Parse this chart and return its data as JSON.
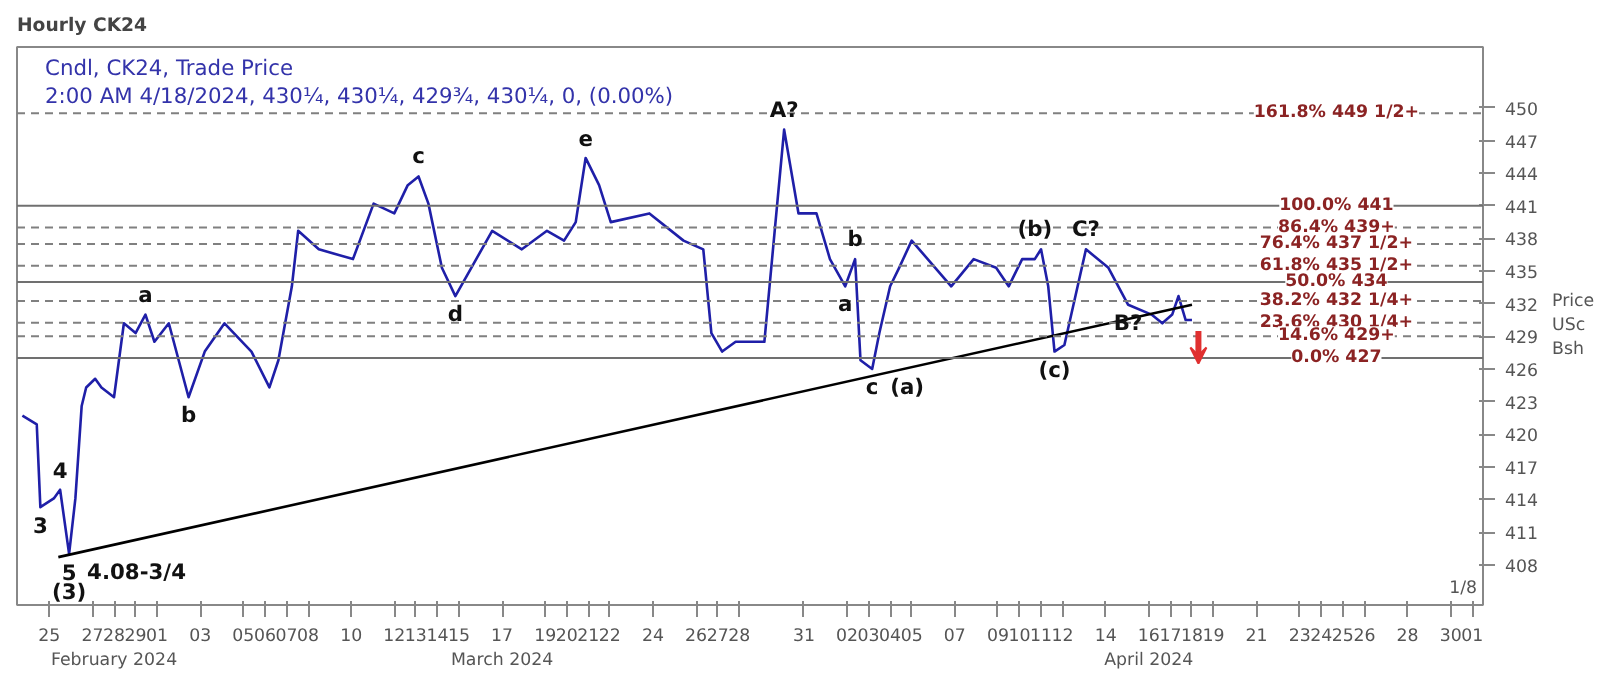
{
  "chart_data": {
    "type": "line",
    "title": "Hourly CK24",
    "subtitle": "Cndl, CK24, Trade Price",
    "ylabel": "Price USc Bsh",
    "xlim": [
      "2024-02-23T12:00",
      "2024-05-01T12:00"
    ],
    "xticks": [
      {
        "value": "2024-02-25",
        "label": "25"
      },
      {
        "value": "2024-02-27",
        "label": "27"
      },
      {
        "value": "2024-02-28",
        "label": "28\nFebruary 2024"
      },
      {
        "value": "2024-02-29",
        "label": "29"
      },
      {
        "value": "2024-03-01",
        "label": "01"
      },
      {
        "value": "2024-03-03",
        "label": "03"
      },
      {
        "value": "2024-03-05",
        "label": "05"
      },
      {
        "value": "2024-03-06",
        "label": "06"
      },
      {
        "value": "2024-03-07",
        "label": "07"
      },
      {
        "value": "2024-03-08",
        "label": "08"
      },
      {
        "value": "2024-03-10",
        "label": "10"
      },
      {
        "value": "2024-03-12",
        "label": "12"
      },
      {
        "value": "2024-03-13",
        "label": "13"
      },
      {
        "value": "2024-03-14",
        "label": "14"
      },
      {
        "value": "2024-03-15",
        "label": "15"
      },
      {
        "value": "2024-03-17",
        "label": "17\nMarch 2024"
      },
      {
        "value": "2024-03-19",
        "label": "19"
      },
      {
        "value": "2024-03-20",
        "label": "20"
      },
      {
        "value": "2024-03-21",
        "label": "21"
      },
      {
        "value": "2024-03-22",
        "label": "22"
      },
      {
        "value": "2024-03-24",
        "label": "24"
      },
      {
        "value": "2024-03-26",
        "label": "26"
      },
      {
        "value": "2024-03-27",
        "label": "27"
      },
      {
        "value": "2024-03-28",
        "label": "28"
      },
      {
        "value": "2024-03-31",
        "label": "31"
      },
      {
        "value": "2024-04-02",
        "label": "02"
      },
      {
        "value": "2024-04-03",
        "label": "03"
      },
      {
        "value": "2024-04-04",
        "label": "04"
      },
      {
        "value": "2024-04-05",
        "label": "05"
      },
      {
        "value": "2024-04-07",
        "label": "07"
      },
      {
        "value": "2024-04-09",
        "label": "09"
      },
      {
        "value": "2024-04-10",
        "label": "10"
      },
      {
        "value": "2024-04-11",
        "label": "11"
      },
      {
        "value": "2024-04-12",
        "label": "12"
      },
      {
        "value": "2024-04-14",
        "label": "14"
      },
      {
        "value": "2024-04-16",
        "label": "16\nApril 2024"
      },
      {
        "value": "2024-04-17",
        "label": "17"
      },
      {
        "value": "2024-04-18",
        "label": "18"
      },
      {
        "value": "2024-04-19",
        "label": "19"
      },
      {
        "value": "2024-04-21",
        "label": "21"
      },
      {
        "value": "2024-04-23",
        "label": "23"
      },
      {
        "value": "2024-04-24",
        "label": "24"
      },
      {
        "value": "2024-04-25",
        "label": "25"
      },
      {
        "value": "2024-04-26",
        "label": "26"
      },
      {
        "value": "2024-04-28",
        "label": "28"
      },
      {
        "value": "2024-04-30",
        "label": "30"
      },
      {
        "value": "2024-05-01",
        "label": "01"
      }
    ],
    "ylim": [
      404.3,
      455.6
    ],
    "yticks": [
      408,
      411,
      414,
      417,
      420,
      423,
      426,
      429,
      432,
      435,
      438,
      441,
      444,
      447,
      450
    ],
    "grid": false,
    "marker": "none",
    "line_style": "solid",
    "series": [
      {
        "color": "#1f1fa8",
        "x": [
          "2024-02-23T18:00",
          "2024-02-24T10:00",
          "2024-02-24T14:00",
          "2024-02-25T05:00",
          "2024-02-25T12:00",
          "2024-02-25T22:00",
          "2024-02-26T05:00",
          "2024-02-26T12:00",
          "2024-02-26T17:00",
          "2024-02-27T03:00",
          "2024-02-27T10:00",
          "2024-02-28T00:00",
          "2024-02-28T11:00",
          "2024-02-29T00:00",
          "2024-02-29T11:00",
          "2024-02-29T21:00",
          "2024-03-01T13:00",
          "2024-03-02T11:00",
          "2024-03-03T05:00",
          "2024-03-04T03:00",
          "2024-03-05T09:00",
          "2024-03-06T05:00",
          "2024-03-06T15:00",
          "2024-03-07T06:00",
          "2024-03-07T13:00",
          "2024-03-08T12:00",
          "2024-03-10T02:00",
          "2024-03-11T01:00",
          "2024-03-12T00:00",
          "2024-03-12T15:00",
          "2024-03-13T03:00",
          "2024-03-13T14:00",
          "2024-03-14T05:00",
          "2024-03-14T20:00",
          "2024-03-16T13:00",
          "2024-03-17T22:00",
          "2024-03-19T02:00",
          "2024-03-19T21:00",
          "2024-03-20T10:00",
          "2024-03-20T21:00",
          "2024-03-21T12:00",
          "2024-03-22T01:00",
          "2024-03-23T20:00",
          "2024-03-25T10:00",
          "2024-03-26T08:00",
          "2024-03-26T17:00",
          "2024-03-27T05:00",
          "2024-03-27T20:00",
          "2024-03-29T04:00",
          "2024-03-30T02:00",
          "2024-03-30T18:00",
          "2024-03-31T14:00",
          "2024-04-01T05:00",
          "2024-04-01T22:00",
          "2024-04-02T09:00",
          "2024-04-02T15:00",
          "2024-04-03T04:00",
          "2024-04-03T12:00",
          "2024-04-04T00:00",
          "2024-04-04T10:00",
          "2024-04-05T00:00",
          "2024-04-06T20:00",
          "2024-04-07T21:00",
          "2024-04-08T22:00",
          "2024-04-09T12:00",
          "2024-04-10T03:00",
          "2024-04-10T17:00",
          "2024-04-11T00:00",
          "2024-04-11T08:00",
          "2024-04-11T15:00",
          "2024-04-12T02:00",
          "2024-04-13T02:00",
          "2024-04-14T03:00",
          "2024-04-15T01:00",
          "2024-04-16T03:00",
          "2024-04-16T15:00",
          "2024-04-17T02:00",
          "2024-04-17T09:00",
          "2024-04-17T17:00",
          "2024-04-18T00:00"
        ],
        "values": [
          421.7,
          420.9,
          413.3,
          414.1,
          414.9,
          409.0,
          414.1,
          422.6,
          424.3,
          425.1,
          424.3,
          423.4,
          430.2,
          429.3,
          431.0,
          428.5,
          430.2,
          423.4,
          427.6,
          430.2,
          427.6,
          424.3,
          426.8,
          433.6,
          438.7,
          437.0,
          436.1,
          441.2,
          440.3,
          442.9,
          443.7,
          441.2,
          435.3,
          432.7,
          438.7,
          437.0,
          438.7,
          437.8,
          439.5,
          445.4,
          442.9,
          439.5,
          440.3,
          437.8,
          437.0,
          429.3,
          427.6,
          428.5,
          428.5,
          448.0,
          440.3,
          440.3,
          436.1,
          433.6,
          436.1,
          426.8,
          426.0,
          429.3,
          433.6,
          435.3,
          437.8,
          433.6,
          436.1,
          435.3,
          433.6,
          436.1,
          436.1,
          437.0,
          433.6,
          427.6,
          428.2,
          437.0,
          435.3,
          431.9,
          431.0,
          430.2,
          431.0,
          432.7,
          430.5,
          430.5
        ]
      },
      {
        "color": "#000000",
        "x": [
          "2024-02-25T10:00",
          "2024-04-18T00:00"
        ],
        "values": [
          408.7,
          431.9
        ]
      }
    ],
    "ref_lines": [
      {
        "axis": "y",
        "value": 449.5,
        "label": "161.8% 449 1/2+",
        "color": "#808080",
        "line_style": "dashed"
      },
      {
        "axis": "y",
        "value": 441,
        "label": "100.0% 441",
        "color": "#707070",
        "line_style": "solid"
      },
      {
        "axis": "y",
        "value": 439,
        "label": "86.4% 439+",
        "color": "#808080",
        "line_style": "dashed"
      },
      {
        "axis": "y",
        "value": 437.5,
        "label": "76.4% 437 1/2+",
        "color": "#808080",
        "line_style": "dashed"
      },
      {
        "axis": "y",
        "value": 435.5,
        "label": "61.8% 435 1/2+",
        "color": "#808080",
        "line_style": "dashed"
      },
      {
        "axis": "y",
        "value": 434,
        "label": "50.0% 434",
        "color": "#707070",
        "line_style": "solid"
      },
      {
        "axis": "y",
        "value": 432.25,
        "label": "38.2% 432 1/4+",
        "color": "#808080",
        "line_style": "dashed"
      },
      {
        "axis": "y",
        "value": 430.25,
        "label": "23.6% 430 1/4+",
        "color": "#808080",
        "line_style": "dashed"
      },
      {
        "axis": "y",
        "value": 429,
        "label": "14.6% 429+",
        "color": "#808080",
        "line_style": "dashed"
      },
      {
        "axis": "y",
        "value": 427,
        "label": "0.0% 427",
        "color": "#707070",
        "line_style": "solid"
      }
    ],
    "annotations": [
      "2:00 AM 4/18/2024, 430¼, 430¼, 429¾, 430¼, 0, (0.00%)",
      "1/8",
      {
        "text": "3",
        "x": "2024-02-24T14:00",
        "y": 413.3
      },
      {
        "text": "4",
        "x": "2024-02-25T12:00",
        "y": 414.9
      },
      {
        "text": "5",
        "x": "2024-02-25T22:00",
        "y": 409.0
      },
      {
        "text": "4.08-3/4",
        "x": "2024-02-25T22:00",
        "y": 409.0
      },
      {
        "text": "(3)",
        "x": "2024-02-25T22:00",
        "y": 409.0
      },
      {
        "text": "a",
        "x": "2024-02-29T11:00",
        "y": 431.0
      },
      {
        "text": "b",
        "x": "2024-03-02T11:00",
        "y": 423.4
      },
      {
        "text": "c",
        "x": "2024-03-13T03:00",
        "y": 443.7
      },
      {
        "text": "d",
        "x": "2024-03-14T20:00",
        "y": 432.7
      },
      {
        "text": "e",
        "x": "2024-03-20T21:00",
        "y": 445.4
      },
      {
        "text": "A?",
        "x": "2024-03-30T02:00",
        "y": 448.0
      },
      {
        "text": "a",
        "x": "2024-04-01T22:00",
        "y": 433.6
      },
      {
        "text": "b",
        "x": "2024-04-02T09:00",
        "y": 436.1
      },
      {
        "text": "c",
        "x": "2024-04-03T04:00",
        "y": 426.0
      },
      {
        "text": "(a)",
        "x": "2024-04-03T04:00",
        "y": 426.0
      },
      {
        "text": "(b)",
        "x": "2024-04-10T17:00",
        "y": 437.0
      },
      {
        "text": "(c)",
        "x": "2024-04-11T15:00",
        "y": 427.6
      },
      {
        "text": "B?",
        "x": "2024-04-15T01:00",
        "y": 431.9
      },
      {
        "text": "C?",
        "x": "2024-04-13T02:00",
        "y": 437.0
      }
    ]
  }
}
